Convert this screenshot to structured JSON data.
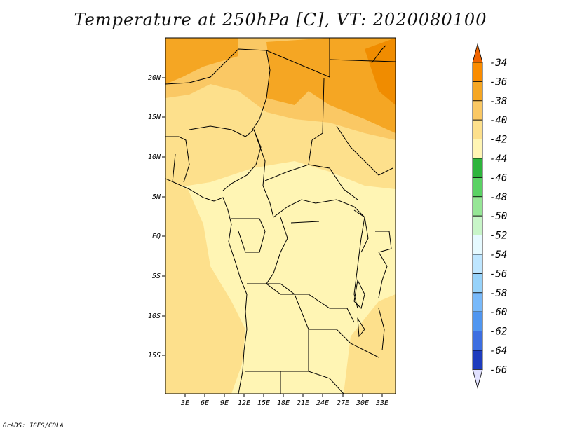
{
  "title": "Temperature at 250hPa [C], VT: 2020080100",
  "credit": "GrADS: IGES/COLA",
  "map": {
    "y_ticks": [
      "20N",
      "15N",
      "10N",
      "5N",
      "EQ",
      "5S",
      "10S",
      "15S"
    ],
    "x_ticks": [
      "3E",
      "6E",
      "9E",
      "12E",
      "15E",
      "18E",
      "21E",
      "24E",
      "27E",
      "30E",
      "33E"
    ]
  },
  "colorbar": {
    "labels": [
      "-34",
      "-36",
      "-38",
      "-40",
      "-42",
      "-44",
      "-46",
      "-48",
      "-50",
      "-52",
      "-54",
      "-56",
      "-58",
      "-60",
      "-62",
      "-64",
      "-66"
    ],
    "colors": [
      "#f06400",
      "#fa8c00",
      "#f5a623",
      "#fac864",
      "#fde08c",
      "#fff5b4",
      "#2db43c",
      "#5ad264",
      "#96e696",
      "#c8f5c8",
      "#e6faff",
      "#bee6ff",
      "#96d2fa",
      "#78b9fa",
      "#5096f0",
      "#3c6ee1",
      "#1e3cbe",
      "#0a147a",
      "#e1e1ff"
    ]
  },
  "palette": {
    "lightest": "#fff5b4",
    "light": "#fde08c",
    "mid": "#fac864",
    "orange": "#f5a623",
    "deep": "#f08c00"
  }
}
